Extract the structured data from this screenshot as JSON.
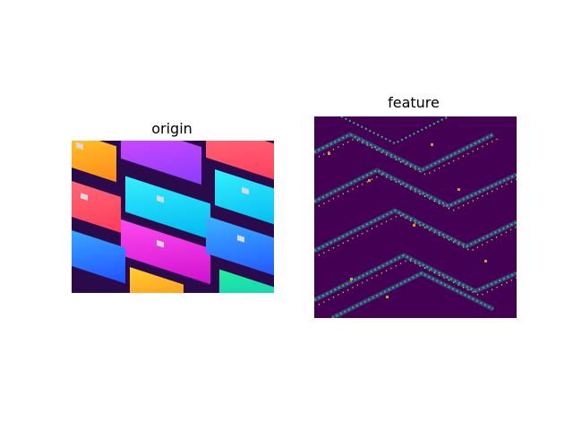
{
  "panels": [
    {
      "title": "origin",
      "image_subject": "credit-cards-isometric"
    },
    {
      "title": "feature",
      "image_subject": "edge-feature-map",
      "colormap": "viridis"
    }
  ],
  "colors": {
    "background": "#ffffff",
    "card_red": "#ff4d6a",
    "card_orange": "#ffb020",
    "card_purple": "#c33cff",
    "card_cyan": "#16d8f5",
    "card_blue": "#2f8cff",
    "card_magenta": "#ff2fe0",
    "card_green": "#17e6a0",
    "card_shadow": "#2a0a4a",
    "viridis_dark": "#440154",
    "viridis_mid": "#31688e",
    "viridis_green": "#35b779",
    "viridis_yellow": "#fde725"
  }
}
